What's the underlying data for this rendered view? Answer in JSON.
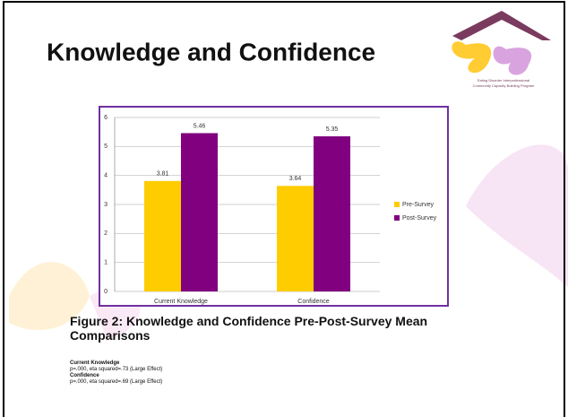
{
  "title": "Knowledge and Confidence",
  "logo_text": [
    "Eating Disorder Interprofessional",
    "Community Capacity Building Program"
  ],
  "chart_data": {
    "type": "bar",
    "categories": [
      "Current Knowledge",
      "Confidence"
    ],
    "series": [
      {
        "name": "Pre-Survey",
        "color": "#ffcc00",
        "values": [
          3.81,
          3.64
        ]
      },
      {
        "name": "Post-Survey",
        "color": "#800080",
        "values": [
          5.46,
          5.35
        ]
      }
    ],
    "ylim": [
      0,
      6
    ],
    "yticks": [
      0,
      1,
      2,
      3,
      4,
      5,
      6
    ],
    "grid": true,
    "legend": "right"
  },
  "caption": "Figure 2: Knowledge and Confidence Pre-Post-Survey Mean Comparisons",
  "notes": [
    {
      "heading": "Current Knowledge",
      "text": "p=.000, eta squared=.73 (Large Effect)"
    },
    {
      "heading": "Confidence",
      "text": "p=.000, eta squared=.69 (Large Effect)"
    }
  ]
}
